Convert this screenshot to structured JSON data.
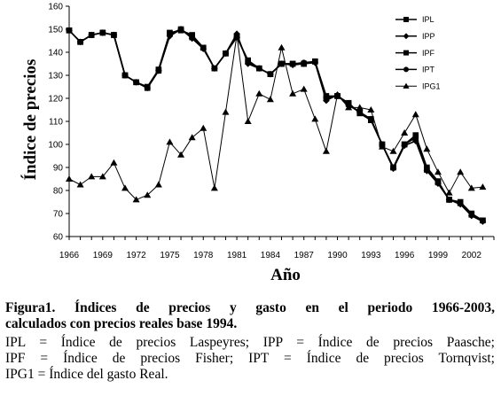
{
  "chart_data": {
    "type": "line",
    "xlabel": "Año",
    "ylabel": "Índice de precios",
    "ylim": [
      60,
      160
    ],
    "yticks": [
      60,
      70,
      80,
      90,
      100,
      110,
      120,
      130,
      140,
      150,
      160
    ],
    "xlim": [
      1966,
      2004
    ],
    "xticks": [
      "1966",
      "1969",
      "1972",
      "1975",
      "1978",
      "1981",
      "1984",
      "1987",
      "1990",
      "1993",
      "1996",
      "1999",
      "2002"
    ],
    "grid": false,
    "legend": "top-right",
    "x": [
      1966,
      1967,
      1968,
      1969,
      1970,
      1971,
      1972,
      1973,
      1974,
      1975,
      1976,
      1977,
      1978,
      1979,
      1980,
      1981,
      1982,
      1983,
      1984,
      1985,
      1986,
      1987,
      1988,
      1989,
      1990,
      1991,
      1992,
      1993,
      1994,
      1995,
      1996,
      1997,
      1998,
      1999,
      2000,
      2001,
      2002,
      2003
    ],
    "series": [
      {
        "name": "IPL",
        "marker": "square",
        "values": [
          149.5,
          144.5,
          147.5,
          148.5,
          147.5,
          130,
          127,
          125,
          132.5,
          148.5,
          149.5,
          147.5,
          142,
          133,
          139.5,
          146.5,
          136.5,
          133,
          130.5,
          135,
          135,
          135,
          136,
          121,
          121,
          118,
          113.5,
          110.5,
          100,
          90,
          100,
          104,
          90,
          84,
          76,
          75,
          70,
          67
        ]
      },
      {
        "name": "IPP",
        "marker": "diamond",
        "values": [
          149.5,
          144.5,
          147.5,
          148.5,
          147.5,
          130,
          127,
          124.5,
          132,
          147,
          150,
          146,
          141.5,
          133,
          139.5,
          148,
          135,
          133,
          130.5,
          135,
          134.5,
          135,
          135.5,
          119,
          121.5,
          117,
          114,
          111,
          100,
          89.5,
          99.5,
          101.5,
          88.5,
          83,
          76,
          74,
          69,
          66.5
        ]
      },
      {
        "name": "IPF",
        "marker": "square",
        "values": [
          149.5,
          144.5,
          147.5,
          148.5,
          147.5,
          130,
          127,
          124.5,
          132,
          148,
          150,
          146.5,
          142,
          133,
          139.5,
          147,
          136,
          133,
          130.5,
          135,
          135,
          135,
          136,
          120,
          121,
          117.5,
          114,
          111,
          100,
          90,
          100,
          103,
          89,
          83.5,
          76,
          74.5,
          69.5,
          67
        ]
      },
      {
        "name": "IPT",
        "marker": "circle",
        "values": [
          149.5,
          144.5,
          147.5,
          148.5,
          147.5,
          130,
          127,
          124.5,
          132,
          147.5,
          150,
          146.5,
          142,
          133,
          139.5,
          147,
          136,
          133,
          130.5,
          135,
          135,
          135.5,
          136,
          120.5,
          121,
          117.5,
          114,
          111,
          100,
          90,
          100,
          103,
          89,
          83.5,
          76,
          74.5,
          69.5,
          67
        ]
      },
      {
        "name": "IPG1",
        "marker": "triangle",
        "values": [
          85,
          82.5,
          86,
          86,
          92,
          81,
          76,
          78,
          82.5,
          101,
          95.5,
          103,
          107,
          81,
          114,
          147.5,
          110,
          122,
          119.5,
          142,
          122,
          124,
          111,
          97,
          121.5,
          116,
          116,
          115,
          99,
          97,
          105,
          113,
          98,
          88,
          79,
          88,
          81,
          81.5
        ]
      }
    ]
  },
  "caption": {
    "title_lines": [
      "Figura1. Índices de precios y gasto en el periodo 1966-2003,",
      "calculados con precios reales base 1994."
    ],
    "body_lines": [
      "IPL = Índice de precios Laspeyres; IPP = Índice de precios Paasche;",
      "IPF = Índice de precios Fisher; IPT = Índice de precios Tornqvist;",
      "IPG1 = Índice del gasto Real."
    ]
  }
}
